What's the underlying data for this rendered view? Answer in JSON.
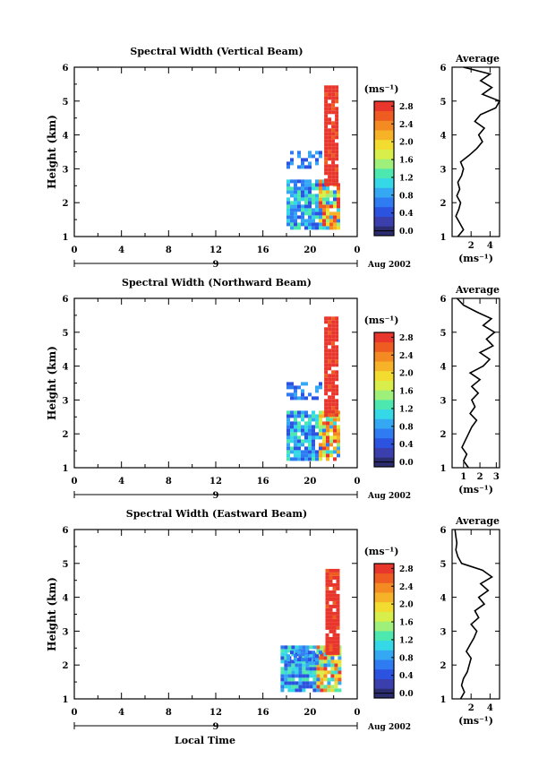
{
  "colorbar": {
    "unit_label": "(ms⁻¹)",
    "ticks": [
      "0.0",
      "0.4",
      "0.8",
      "1.2",
      "1.6",
      "2.0",
      "2.4",
      "2.8"
    ],
    "colors": [
      "#2b2d6e",
      "#3b3fae",
      "#2c52e0",
      "#2f7bf2",
      "#35a8f4",
      "#34d8e6",
      "#4de8b0",
      "#9ff07a",
      "#d8ee4a",
      "#f2dc30",
      "#f6b328",
      "#f38a22",
      "#ee5c22",
      "#e8362c"
    ]
  },
  "chart_data": [
    {
      "type": "heatmap",
      "title": "Spectral Width (Vertical Beam)",
      "ylabel": "Height (km)",
      "ylim": [
        1,
        6
      ],
      "yticks": [
        "1",
        "2",
        "3",
        "4",
        "5",
        "6"
      ],
      "xlim": [
        0,
        24
      ],
      "xticks": [
        "0",
        "4",
        "8",
        "12",
        "16",
        "20",
        "0"
      ],
      "date_day": "9",
      "date_label": "Aug 2002",
      "ranges": [
        {
          "t0": 18.0,
          "t1": 22.5,
          "h0": 1.2,
          "h1": 2.6,
          "level": "low"
        },
        {
          "t0": 21.2,
          "t1": 22.4,
          "h0": 2.5,
          "h1": 5.4,
          "level": "high"
        },
        {
          "t0": 18.0,
          "t1": 21.0,
          "h0": 3.0,
          "h1": 3.5,
          "level": "sparse"
        }
      ],
      "avg": {
        "title": "Average",
        "xlabel": "(ms⁻¹)",
        "xticks": [
          "2",
          "4"
        ],
        "xlim": [
          0,
          5
        ],
        "height": [
          1.0,
          1.2,
          1.4,
          1.6,
          1.8,
          2.0,
          2.2,
          2.4,
          2.6,
          2.8,
          3.0,
          3.2,
          3.4,
          3.6,
          3.8,
          4.0,
          4.2,
          4.4,
          4.6,
          4.8,
          5.0,
          5.2,
          5.4,
          5.6,
          5.8,
          6.0
        ],
        "value": [
          0.6,
          1.2,
          0.8,
          0.4,
          0.7,
          0.9,
          0.5,
          0.8,
          0.6,
          1.0,
          1.2,
          0.9,
          1.8,
          2.6,
          3.2,
          2.8,
          3.4,
          2.4,
          3.0,
          4.6,
          5.0,
          3.2,
          4.2,
          3.0,
          4.0,
          1.2
        ]
      }
    },
    {
      "type": "heatmap",
      "title": "Spectral Width (Northward Beam)",
      "ylabel": "Height (km)",
      "ylim": [
        1,
        6
      ],
      "yticks": [
        "1",
        "2",
        "3",
        "4",
        "5",
        "6"
      ],
      "xlim": [
        0,
        24
      ],
      "xticks": [
        "0",
        "4",
        "8",
        "12",
        "16",
        "20",
        "0"
      ],
      "date_day": "9",
      "date_label": "Aug 2002",
      "ranges": [
        {
          "t0": 18.0,
          "t1": 22.5,
          "h0": 1.2,
          "h1": 2.6,
          "level": "low"
        },
        {
          "t0": 21.2,
          "t1": 22.4,
          "h0": 2.5,
          "h1": 5.4,
          "level": "high"
        },
        {
          "t0": 18.0,
          "t1": 21.0,
          "h0": 3.0,
          "h1": 3.5,
          "level": "sparse"
        }
      ],
      "avg": {
        "title": "Average",
        "xlabel": "(ms⁻¹)",
        "xticks": [
          "1",
          "2",
          "3"
        ],
        "xlim": [
          0.3,
          3.2
        ],
        "height": [
          1.0,
          1.2,
          1.4,
          1.6,
          1.8,
          2.0,
          2.2,
          2.4,
          2.6,
          2.8,
          3.0,
          3.2,
          3.4,
          3.6,
          3.8,
          4.0,
          4.2,
          4.4,
          4.6,
          4.8,
          5.0,
          5.2,
          5.4,
          5.6,
          5.8,
          6.0
        ],
        "value": [
          1.3,
          1.0,
          1.2,
          0.9,
          1.1,
          1.3,
          1.5,
          1.8,
          1.4,
          1.7,
          1.5,
          1.9,
          1.5,
          2.0,
          1.4,
          2.2,
          2.6,
          2.0,
          2.8,
          2.4,
          2.9,
          2.2,
          2.7,
          1.8,
          1.0,
          0.6
        ]
      }
    },
    {
      "type": "heatmap",
      "title": "Spectral Width (Eastward Beam)",
      "ylabel": "Height (km)",
      "ylim": [
        1,
        6
      ],
      "yticks": [
        "1",
        "2",
        "3",
        "4",
        "5",
        "6"
      ],
      "xlim": [
        0,
        24
      ],
      "xticks": [
        "0",
        "4",
        "8",
        "12",
        "16",
        "20",
        "0"
      ],
      "date_day": "9",
      "date_label": "Aug 2002",
      "xlabel": "Local Time",
      "ranges": [
        {
          "t0": 17.5,
          "t1": 22.5,
          "h0": 1.2,
          "h1": 2.5,
          "level": "low"
        },
        {
          "t0": 21.3,
          "t1": 22.4,
          "h0": 2.3,
          "h1": 4.8,
          "level": "high"
        },
        {
          "t0": 18.0,
          "t1": 21.0,
          "h0": 2.0,
          "h1": 2.4,
          "level": "sparse"
        }
      ],
      "avg": {
        "title": "Average",
        "xlabel": "(ms⁻¹)",
        "xticks": [
          "2",
          "4"
        ],
        "xlim": [
          0,
          5
        ],
        "height": [
          1.0,
          1.2,
          1.4,
          1.6,
          1.8,
          2.0,
          2.2,
          2.4,
          2.6,
          2.8,
          3.0,
          3.2,
          3.4,
          3.6,
          3.8,
          4.0,
          4.2,
          4.4,
          4.6,
          4.8,
          5.0,
          5.2,
          5.4,
          5.6,
          5.8,
          6.0
        ],
        "value": [
          0.9,
          1.3,
          1.0,
          1.2,
          1.6,
          1.8,
          2.0,
          1.5,
          1.9,
          2.3,
          2.6,
          2.0,
          2.8,
          2.4,
          3.4,
          2.8,
          3.8,
          3.0,
          4.2,
          3.2,
          1.0,
          0.6,
          0.4,
          0.5,
          0.4,
          0.3
        ]
      }
    }
  ]
}
